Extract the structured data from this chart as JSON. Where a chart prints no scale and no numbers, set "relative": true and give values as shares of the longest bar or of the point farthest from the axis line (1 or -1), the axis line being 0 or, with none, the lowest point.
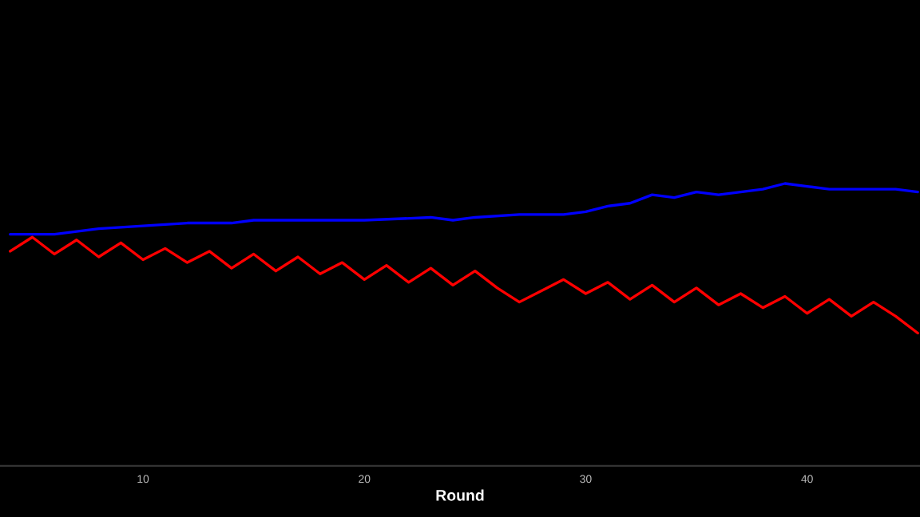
{
  "chart_data": {
    "type": "line",
    "relative": true,
    "xlabel": "Round",
    "xlim": [
      3.54,
      45.1
    ],
    "xticks": [
      10,
      20,
      30,
      40
    ],
    "grid": false,
    "marker": "none",
    "line_style": "solid",
    "series": [
      {
        "color": "#0000ff",
        "x": [
          4,
          6,
          8,
          10,
          12,
          14,
          15,
          17,
          20,
          23,
          24,
          25,
          27,
          28,
          29,
          30,
          31,
          32,
          33,
          34,
          35,
          36,
          37,
          38,
          39,
          40,
          41,
          42,
          43,
          44,
          45
        ],
        "values": [
          0.82,
          0.82,
          0.84,
          0.85,
          0.86,
          0.86,
          0.87,
          0.87,
          0.87,
          0.88,
          0.87,
          0.88,
          0.89,
          0.89,
          0.89,
          0.9,
          0.92,
          0.93,
          0.96,
          0.95,
          0.97,
          0.96,
          0.97,
          0.98,
          1.0,
          0.99,
          0.98,
          0.98,
          0.98,
          0.98,
          0.97
        ]
      },
      {
        "color": "#ff0000",
        "x": [
          4,
          5,
          6,
          7,
          8,
          9,
          10,
          11,
          12,
          13,
          14,
          15,
          16,
          17,
          18,
          19,
          20,
          21,
          22,
          23,
          24,
          25,
          26,
          27,
          28,
          29,
          30,
          31,
          32,
          33,
          34,
          35,
          36,
          37,
          38,
          39,
          40,
          41,
          42,
          43,
          44,
          45
        ],
        "values": [
          0.76,
          0.81,
          0.75,
          0.8,
          0.74,
          0.79,
          0.73,
          0.77,
          0.72,
          0.76,
          0.7,
          0.75,
          0.69,
          0.74,
          0.68,
          0.72,
          0.66,
          0.71,
          0.65,
          0.7,
          0.64,
          0.69,
          0.63,
          0.58,
          0.62,
          0.66,
          0.61,
          0.65,
          0.59,
          0.64,
          0.58,
          0.63,
          0.57,
          0.61,
          0.56,
          0.6,
          0.54,
          0.59,
          0.53,
          0.58,
          0.53,
          0.47
        ]
      }
    ]
  }
}
